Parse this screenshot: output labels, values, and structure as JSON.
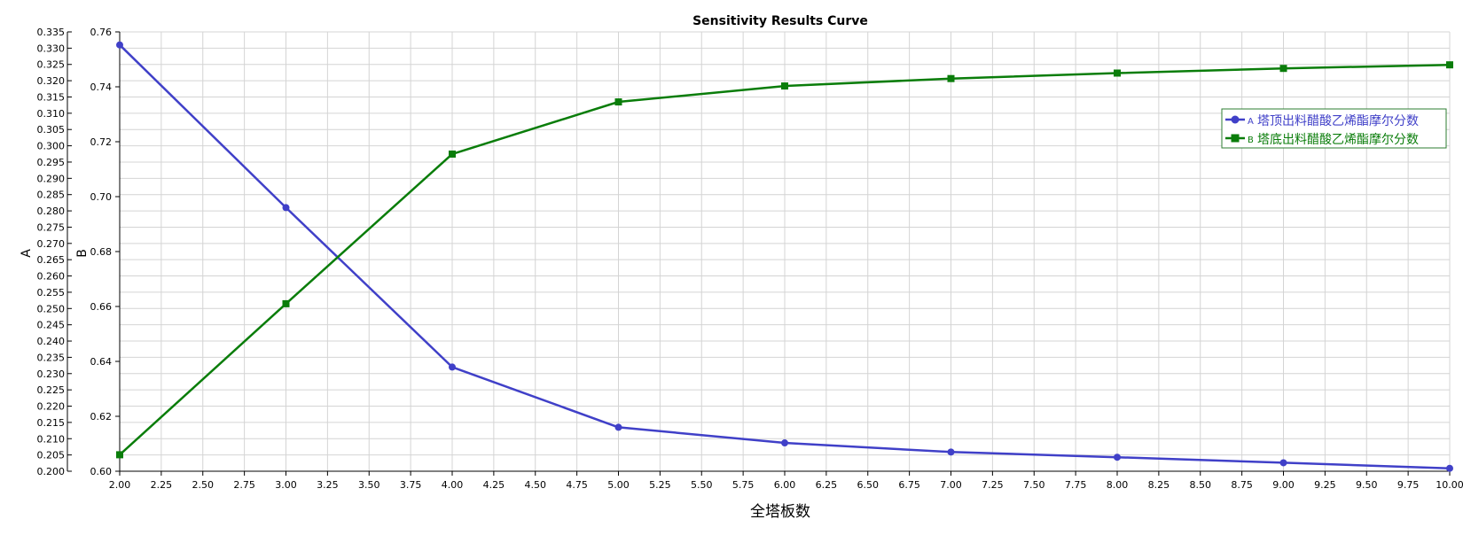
{
  "chart_data": {
    "type": "line",
    "title": "Sensitivity Results Curve",
    "xlabel": "全塔板数",
    "ylabel_left": "A",
    "ylabel_right": "B",
    "xlim": [
      2.0,
      10.0
    ],
    "x_ticks": [
      "2.00",
      "2.25",
      "2.50",
      "2.75",
      "3.00",
      "3.25",
      "3.50",
      "3.75",
      "4.00",
      "4.25",
      "4.50",
      "4.75",
      "5.00",
      "5.25",
      "5.50",
      "5.75",
      "6.00",
      "6.25",
      "6.50",
      "6.75",
      "7.00",
      "7.25",
      "7.50",
      "7.75",
      "8.00",
      "8.25",
      "8.50",
      "8.75",
      "9.00",
      "9.25",
      "9.50",
      "9.75",
      "10.00"
    ],
    "yA": {
      "lim": [
        0.2,
        0.335
      ],
      "ticks": [
        "0.200",
        "0.205",
        "0.210",
        "0.215",
        "0.220",
        "0.225",
        "0.230",
        "0.235",
        "0.240",
        "0.245",
        "0.250",
        "0.255",
        "0.260",
        "0.265",
        "0.270",
        "0.275",
        "0.280",
        "0.285",
        "0.290",
        "0.295",
        "0.300",
        "0.305",
        "0.310",
        "0.315",
        "0.320",
        "0.325",
        "0.330",
        "0.335"
      ]
    },
    "yB": {
      "lim": [
        0.6,
        0.76
      ],
      "ticks": [
        "0.60",
        "0.62",
        "0.64",
        "0.66",
        "0.68",
        "0.70",
        "0.72",
        "0.74",
        "0.76"
      ]
    },
    "grid": true,
    "legend_position": "top-right",
    "series": [
      {
        "name": "塔顶出料醋酸乙烯酯摩尔分数",
        "axis": "A",
        "letter": "A",
        "color": "#4040c8",
        "marker": "circle",
        "x": [
          2,
          3,
          4,
          5,
          6,
          7,
          8,
          9,
          10
        ],
        "values": [
          0.331,
          0.281,
          0.232,
          0.2135,
          0.2087,
          0.2059,
          0.2043,
          0.2026,
          0.2009
        ]
      },
      {
        "name": "塔底出料醋酸乙烯酯摩尔分数",
        "axis": "B",
        "letter": "B",
        "color": "#0a7d0a",
        "marker": "square",
        "x": [
          2,
          3,
          4,
          5,
          6,
          7,
          8,
          9,
          10
        ],
        "values": [
          0.606,
          0.661,
          0.7155,
          0.7345,
          0.7403,
          0.743,
          0.745,
          0.7467,
          0.748
        ]
      }
    ]
  }
}
